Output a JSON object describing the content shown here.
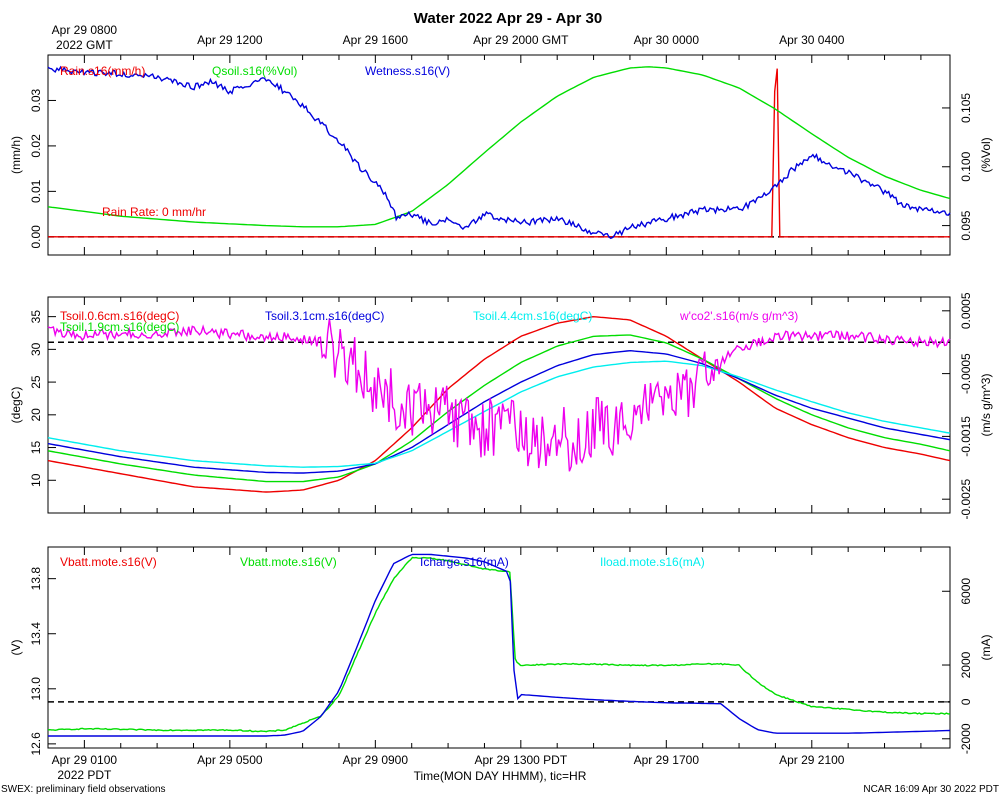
{
  "title": "Water 2022 Apr 29 - Apr 30",
  "top_axis": {
    "origin_line1": "Apr 29 0800",
    "origin_line2": "2022 GMT",
    "ticks": [
      {
        "hour": 4,
        "label": "Apr 29 1200"
      },
      {
        "hour": 8,
        "label": "Apr 29 1600"
      },
      {
        "hour": 12,
        "label": "Apr 29 2000 GMT"
      },
      {
        "hour": 16,
        "label": "Apr 30 0000"
      },
      {
        "hour": 20,
        "label": "Apr 30 0400"
      }
    ]
  },
  "bottom_axis": {
    "origin_line1": "Apr 29 0100",
    "origin_line2": "2022 PDT",
    "ticks": [
      {
        "hour": 4,
        "label": "Apr 29 0500"
      },
      {
        "hour": 8,
        "label": "Apr 29 0900"
      },
      {
        "hour": 12,
        "label": "Apr 29 1300 PDT"
      },
      {
        "hour": 16,
        "label": "Apr 29 1700"
      },
      {
        "hour": 20,
        "label": "Apr 29 2100"
      }
    ],
    "xlabel": "Time(MON DAY HHMM), tic=HR"
  },
  "footer": {
    "left": "SWEX: preliminary field observations",
    "right": "NCAR 16:09 Apr 30 2022 PDT"
  },
  "colors": {
    "red": "#ee0000",
    "green": "#00dd00",
    "blue": "#0000dd",
    "cyan": "#00eeee",
    "magenta": "#ee00ee",
    "black": "#000000"
  },
  "chart_data": [
    {
      "type": "line",
      "panel": "Water",
      "xlim": [
        -1,
        23.8
      ],
      "left_axis": {
        "label": "(mm/h)",
        "ylim": [
          -0.004,
          0.04
        ],
        "ticks": [
          "0.00",
          "0.01",
          "0.02",
          "0.03"
        ],
        "tick_values": [
          0,
          0.01,
          0.02,
          0.03
        ]
      },
      "right_axis": {
        "label": "(%Vol)",
        "ylim": [
          0.0925,
          0.1095
        ],
        "ticks": [
          "0.095",
          "0.100",
          "0.105"
        ],
        "tick_values": [
          0.095,
          0.1,
          0.105
        ]
      },
      "legend": [
        {
          "label": "Rain.s16(mm/h)",
          "color": "red"
        },
        {
          "label": "Qsoil.s16(%Vol)",
          "color": "green"
        },
        {
          "label": "Wetness.s16(V)",
          "color": "blue"
        }
      ],
      "annotation": "Rain Rate: 0 mm/hr",
      "reference_line": 0,
      "series": [
        {
          "name": "Rain.s16(mm/h)",
          "axis": "left",
          "color": "red",
          "shape": "spike",
          "x": [
            -1,
            18.9,
            18.98,
            19.05,
            19.12,
            23.8
          ],
          "y": [
            0,
            0,
            0.032,
            0.037,
            0,
            0
          ]
        },
        {
          "name": "Qsoil.s16(%Vol)",
          "axis": "right",
          "color": "green",
          "x": [
            -1,
            1,
            3,
            5,
            6,
            7,
            8,
            9,
            10,
            11,
            12,
            13,
            14,
            15,
            15.5,
            16,
            17,
            18,
            19,
            20,
            21,
            22,
            23,
            23.8
          ],
          "y": [
            0.0966,
            0.0958,
            0.0953,
            0.095,
            0.0949,
            0.0949,
            0.0951,
            0.0962,
            0.0985,
            0.1012,
            0.1038,
            0.106,
            0.1076,
            0.1084,
            0.1085,
            0.1084,
            0.1078,
            0.1067,
            0.1049,
            0.1028,
            0.1008,
            0.0992,
            0.098,
            0.0973
          ]
        },
        {
          "name": "Wetness.s16(V)",
          "axis": "left",
          "color": "blue",
          "noise": 0.0007,
          "x": [
            -1,
            0,
            1,
            2,
            2.5,
            3,
            3.5,
            4,
            4.5,
            5,
            5.5,
            6,
            6.5,
            7,
            7.5,
            8,
            8.3,
            8.6,
            9,
            9.5,
            10,
            10.5,
            11,
            12,
            13,
            14,
            14.5,
            15,
            15.5,
            16,
            17,
            18,
            18.5,
            19,
            19.5,
            20,
            20.5,
            21,
            21.5,
            22,
            22.5,
            23,
            23.8
          ],
          "y": [
            0.037,
            0.036,
            0.036,
            0.035,
            0.034,
            0.033,
            0.034,
            0.032,
            0.033,
            0.035,
            0.032,
            0.029,
            0.025,
            0.021,
            0.016,
            0.012,
            0.009,
            0.004,
            0.005,
            0.003,
            0.004,
            0.002,
            0.005,
            0.003,
            0.004,
            0.001,
            0.0,
            0.002,
            0.003,
            0.004,
            0.006,
            0.006,
            0.008,
            0.011,
            0.015,
            0.018,
            0.016,
            0.014,
            0.012,
            0.01,
            0.007,
            0.006,
            0.005
          ]
        }
      ]
    },
    {
      "type": "line",
      "panel": "Soil temperature",
      "xlim": [
        -1,
        23.8
      ],
      "left_axis": {
        "label": "(degC)",
        "ylim": [
          5,
          38
        ],
        "ticks": [
          "10",
          "15",
          "20",
          "25",
          "30",
          "35"
        ],
        "tick_values": [
          10,
          15,
          20,
          25,
          30,
          35
        ]
      },
      "right_axis": {
        "label": "(m/s g/m^3)",
        "ylim": [
          -0.00272,
          0.00072
        ],
        "ticks": [
          "-0.0025",
          "-0.0015",
          "-0.0005",
          "0.0005"
        ],
        "tick_values": [
          -0.0025,
          -0.0015,
          -0.0005,
          0.0005
        ],
        "extra_ticks": [
          "-0.002",
          "-0.001",
          "0",
          "0.001"
        ],
        "extra_tick_values": [
          -0.002,
          -0.001,
          0,
          0.0007
        ],
        "extra_tick_labels_shown": [
          "-0.0025",
          "-0.0015",
          "-0.0005",
          "0.0005"
        ]
      },
      "legend": [
        {
          "label": "Tsoil.0.6cm.s16(degC)",
          "color": "red"
        },
        {
          "label": "Tsoil.1.9cm.s16(degC)",
          "color": "green"
        },
        {
          "label": "Tsoil.3.1cm.s16(degC)",
          "color": "blue"
        },
        {
          "label": "Tsoil.4.4cm.s16(degC)",
          "color": "cyan"
        },
        {
          "label": "w'co2'.s16(m/s g/m^3)",
          "color": "magenta"
        }
      ],
      "reference_line": 0,
      "series": [
        {
          "name": "Tsoil.0.6cm.s16(degC)",
          "axis": "left",
          "color": "red",
          "x": [
            -1,
            1,
            3,
            5,
            6,
            7,
            8,
            9,
            10,
            11,
            12,
            13,
            14,
            15,
            16,
            17,
            18,
            19,
            20,
            21,
            22,
            23,
            23.8
          ],
          "y": [
            13,
            11,
            9,
            8.2,
            8.5,
            10,
            13,
            18,
            24,
            28.5,
            32,
            34,
            35,
            34.5,
            32,
            28.5,
            25,
            21,
            18.5,
            16.5,
            15,
            14,
            13
          ]
        },
        {
          "name": "Tsoil.1.9cm.s16(degC)",
          "axis": "left",
          "color": "green",
          "x": [
            -1,
            1,
            3,
            5,
            6,
            7,
            8,
            9,
            10,
            11,
            12,
            13,
            14,
            15,
            16,
            17,
            18,
            19,
            20,
            21,
            22,
            23,
            23.8
          ],
          "y": [
            14.5,
            12.5,
            10.8,
            9.8,
            9.8,
            10.5,
            12.5,
            16,
            20.5,
            24.5,
            28,
            30.5,
            32,
            32.2,
            31,
            28.5,
            25.5,
            22.5,
            20,
            18,
            16.5,
            15.5,
            14.5
          ]
        },
        {
          "name": "Tsoil.3.1cm.s16(degC)",
          "axis": "left",
          "color": "blue",
          "x": [
            -1,
            1,
            3,
            5,
            6,
            7,
            8,
            9,
            10,
            11,
            12,
            13,
            14,
            15,
            16,
            17,
            18,
            19,
            20,
            21,
            22,
            23,
            23.8
          ],
          "y": [
            15.6,
            13.6,
            12,
            11.2,
            11.1,
            11.4,
            12.5,
            15,
            18.5,
            22,
            25,
            27.5,
            29.2,
            29.8,
            29.3,
            27.8,
            25.5,
            23,
            21,
            19.5,
            18,
            17,
            16.2
          ]
        },
        {
          "name": "Tsoil.4.4cm.s16(degC)",
          "axis": "left",
          "color": "cyan",
          "x": [
            -1,
            1,
            3,
            5,
            6,
            7,
            8,
            9,
            10,
            11,
            12,
            13,
            14,
            15,
            16,
            17,
            18,
            19,
            20,
            21,
            22,
            23,
            23.8
          ],
          "y": [
            16.5,
            14.5,
            13,
            12.2,
            12,
            12.1,
            12.6,
            14.5,
            17.5,
            20.5,
            23.5,
            25.8,
            27.3,
            28,
            28.2,
            27.5,
            25.8,
            23.8,
            22,
            20.3,
            19,
            18,
            17.2
          ]
        },
        {
          "name": "w'co2'.s16(m/s g/m^3)",
          "axis": "right",
          "color": "magenta",
          "noise": 8e-05,
          "x": [
            -1,
            0,
            1,
            2,
            3,
            4,
            5,
            6,
            6.5,
            7,
            7.5,
            8,
            8.5,
            9,
            9.5,
            10,
            10.5,
            11,
            11.5,
            12,
            12.5,
            13,
            13.5,
            14,
            14.5,
            15,
            15.5,
            16,
            16.5,
            17,
            17.5,
            18,
            19,
            20,
            21,
            22,
            23,
            23.8
          ],
          "y": [
            0.0002,
            0.0001,
            0.00015,
            0.0001,
            0.0002,
            0.00012,
            0.0001,
            5e-05,
            0.0,
            -0.0002,
            -0.0004,
            -0.0007,
            -0.0009,
            -0.001,
            -0.0012,
            -0.0011,
            -0.0013,
            -0.0014,
            -0.0013,
            -0.0015,
            -0.0016,
            -0.0014,
            -0.0017,
            -0.0013,
            -0.0015,
            -0.0012,
            -0.001,
            -0.0009,
            -0.0008,
            -0.0006,
            -0.0003,
            -0.0001,
            0.0001,
            0.0001,
            0.0001,
            5e-05,
            0.0,
            0.0
          ]
        }
      ]
    },
    {
      "type": "line",
      "panel": "Power",
      "xlim": [
        -1,
        23.8
      ],
      "left_axis": {
        "label": "(V)",
        "ylim": [
          12.57,
          14.03
        ],
        "ticks": [
          "12.6",
          "13.0",
          "13.4",
          "13.8"
        ],
        "tick_values": [
          12.6,
          13.0,
          13.4,
          13.8
        ]
      },
      "right_axis": {
        "label": "(mA)",
        "ylim": [
          -2500,
          8400
        ],
        "ticks": [
          "-2000",
          "0",
          "2000",
          "6000"
        ],
        "tick_values": [
          -2000,
          0,
          2000,
          6000
        ]
      },
      "legend": [
        {
          "label": "Vbatt.mote.s16(V)",
          "color": "red"
        },
        {
          "label": "Vbatt.mote.s16(V)",
          "color": "green"
        },
        {
          "label": "Icharge.s16(mA)",
          "color": "blue"
        },
        {
          "label": "Iload.mote.s16(mA)",
          "color": "cyan"
        }
      ],
      "reference_line": 0,
      "series": [
        {
          "name": "Vbatt.mote.s16(V)",
          "axis": "left",
          "color": "green",
          "noise": 0.004,
          "x": [
            -1,
            0,
            2,
            4,
            5,
            5.5,
            6,
            6.5,
            7,
            7.5,
            8,
            8.5,
            9,
            9.5,
            10,
            10.5,
            11,
            11.7,
            11.85,
            12,
            13,
            14,
            15,
            16,
            17,
            17.5,
            18,
            18.5,
            19,
            20,
            21,
            22,
            23,
            23.8
          ],
          "y": [
            12.7,
            12.71,
            12.7,
            12.7,
            12.69,
            12.7,
            12.75,
            12.8,
            12.95,
            13.25,
            13.55,
            13.8,
            13.95,
            13.95,
            13.93,
            13.9,
            13.87,
            13.85,
            13.2,
            13.17,
            13.18,
            13.18,
            13.17,
            13.17,
            13.18,
            13.18,
            13.17,
            13.05,
            12.96,
            12.87,
            12.85,
            12.83,
            12.82,
            12.82
          ]
        },
        {
          "name": "Icharge.s16(mA)",
          "axis": "right",
          "color": "blue",
          "x": [
            -1,
            0,
            2,
            4,
            5,
            5.5,
            6,
            6.5,
            7,
            7.5,
            8,
            8.5,
            9,
            9.5,
            10,
            10.5,
            11,
            11.7,
            11.85,
            12,
            13,
            14,
            15,
            16,
            17,
            17.5,
            18,
            18.5,
            19,
            20,
            21,
            22,
            23,
            23.8
          ],
          "y": [
            -1850,
            -1850,
            -1850,
            -1850,
            -1850,
            -1800,
            -1600,
            -800,
            600,
            3000,
            5500,
            7500,
            8000,
            8000,
            7900,
            7800,
            7600,
            7000,
            0,
            400,
            250,
            120,
            30,
            -50,
            -80,
            -100,
            -900,
            -1500,
            -1700,
            -1700,
            -1700,
            -1650,
            -1600,
            -1550
          ]
        }
      ]
    }
  ]
}
